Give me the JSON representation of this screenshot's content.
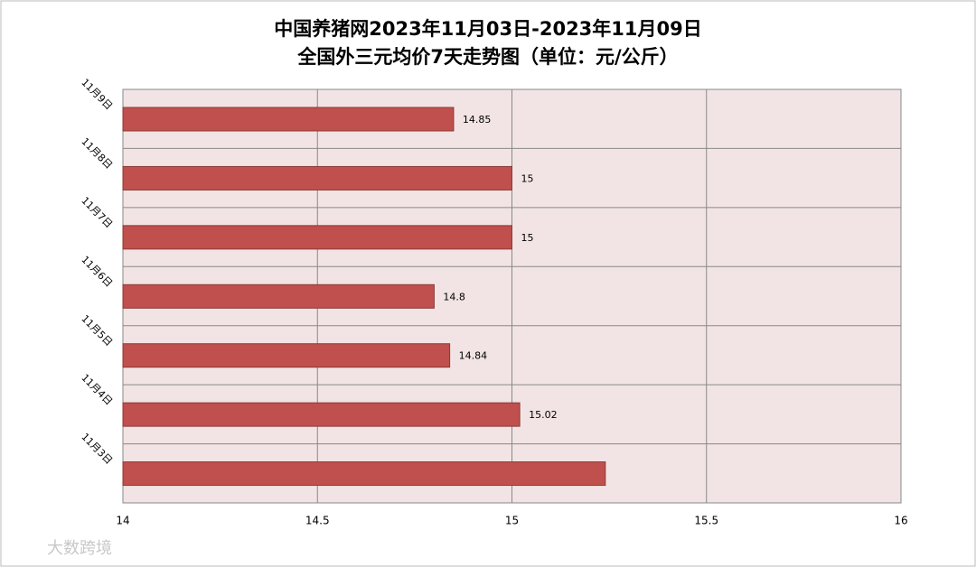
{
  "chart_data": {
    "type": "barh",
    "title": [
      "中国养猪网2023年11月03日-2023年11月09日",
      "全国外三元均价7天走势图（单位：元/公斤）"
    ],
    "categories": [
      "11月9日",
      "11月8日",
      "11月7日",
      "11月6日",
      "11月5日",
      "11月4日",
      "11月3日"
    ],
    "values": [
      14.85,
      15,
      15,
      14.8,
      14.84,
      15.02,
      15.24
    ],
    "value_labels": [
      "14.85",
      "15",
      "15",
      "14.8",
      "14.84",
      "15.02",
      null
    ],
    "color": "#c0504d",
    "xlim": [
      14,
      16
    ],
    "xticks": [
      14,
      14.5,
      15,
      15.5,
      16
    ],
    "grid": true,
    "watermark": "大数跨境"
  }
}
